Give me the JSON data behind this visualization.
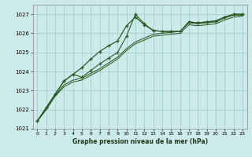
{
  "title": "Graphe pression niveau de la mer (hPa)",
  "bg_color": "#cceaea",
  "grid_color": "#a8d0d0",
  "line_color": "#2d5a27",
  "marker_color": "#2d5a27",
  "ylim": [
    1021,
    1027.5
  ],
  "yticks": [
    1021,
    1022,
    1023,
    1024,
    1025,
    1026,
    1027
  ],
  "xlim": [
    -0.5,
    23.5
  ],
  "xticks": [
    0,
    1,
    2,
    3,
    4,
    5,
    6,
    7,
    8,
    9,
    10,
    11,
    12,
    13,
    14,
    15,
    16,
    17,
    18,
    19,
    20,
    21,
    22,
    23
  ],
  "series": [
    [
      1021.4,
      1022.1,
      1022.8,
      1023.5,
      1023.85,
      1024.2,
      1024.65,
      1025.05,
      1025.35,
      1025.6,
      1026.4,
      1026.85,
      1026.45,
      1026.15,
      1026.1,
      1026.1,
      1026.1,
      1026.6,
      1026.55,
      1026.6,
      1026.65,
      1026.85,
      1027.0,
      1027.0
    ],
    [
      1021.4,
      1022.1,
      1022.8,
      1023.5,
      1023.85,
      1023.7,
      1024.05,
      1024.4,
      1024.7,
      1025.0,
      1025.85,
      1027.0,
      1026.5,
      1026.15,
      1026.1,
      1026.1,
      1026.1,
      1026.6,
      1026.55,
      1026.6,
      1026.65,
      1026.85,
      1027.0,
      1027.0
    ],
    [
      1021.4,
      1022.0,
      1022.75,
      1023.3,
      1023.55,
      1023.65,
      1023.9,
      1024.15,
      1024.45,
      1024.75,
      1025.2,
      1025.55,
      1025.75,
      1025.95,
      1026.0,
      1026.05,
      1026.1,
      1026.55,
      1026.5,
      1026.55,
      1026.6,
      1026.8,
      1026.95,
      1026.95
    ],
    [
      1021.4,
      1022.0,
      1022.7,
      1023.2,
      1023.45,
      1023.55,
      1023.8,
      1024.05,
      1024.35,
      1024.65,
      1025.1,
      1025.45,
      1025.65,
      1025.85,
      1025.9,
      1025.95,
      1026.0,
      1026.45,
      1026.4,
      1026.45,
      1026.5,
      1026.7,
      1026.85,
      1026.9
    ]
  ]
}
